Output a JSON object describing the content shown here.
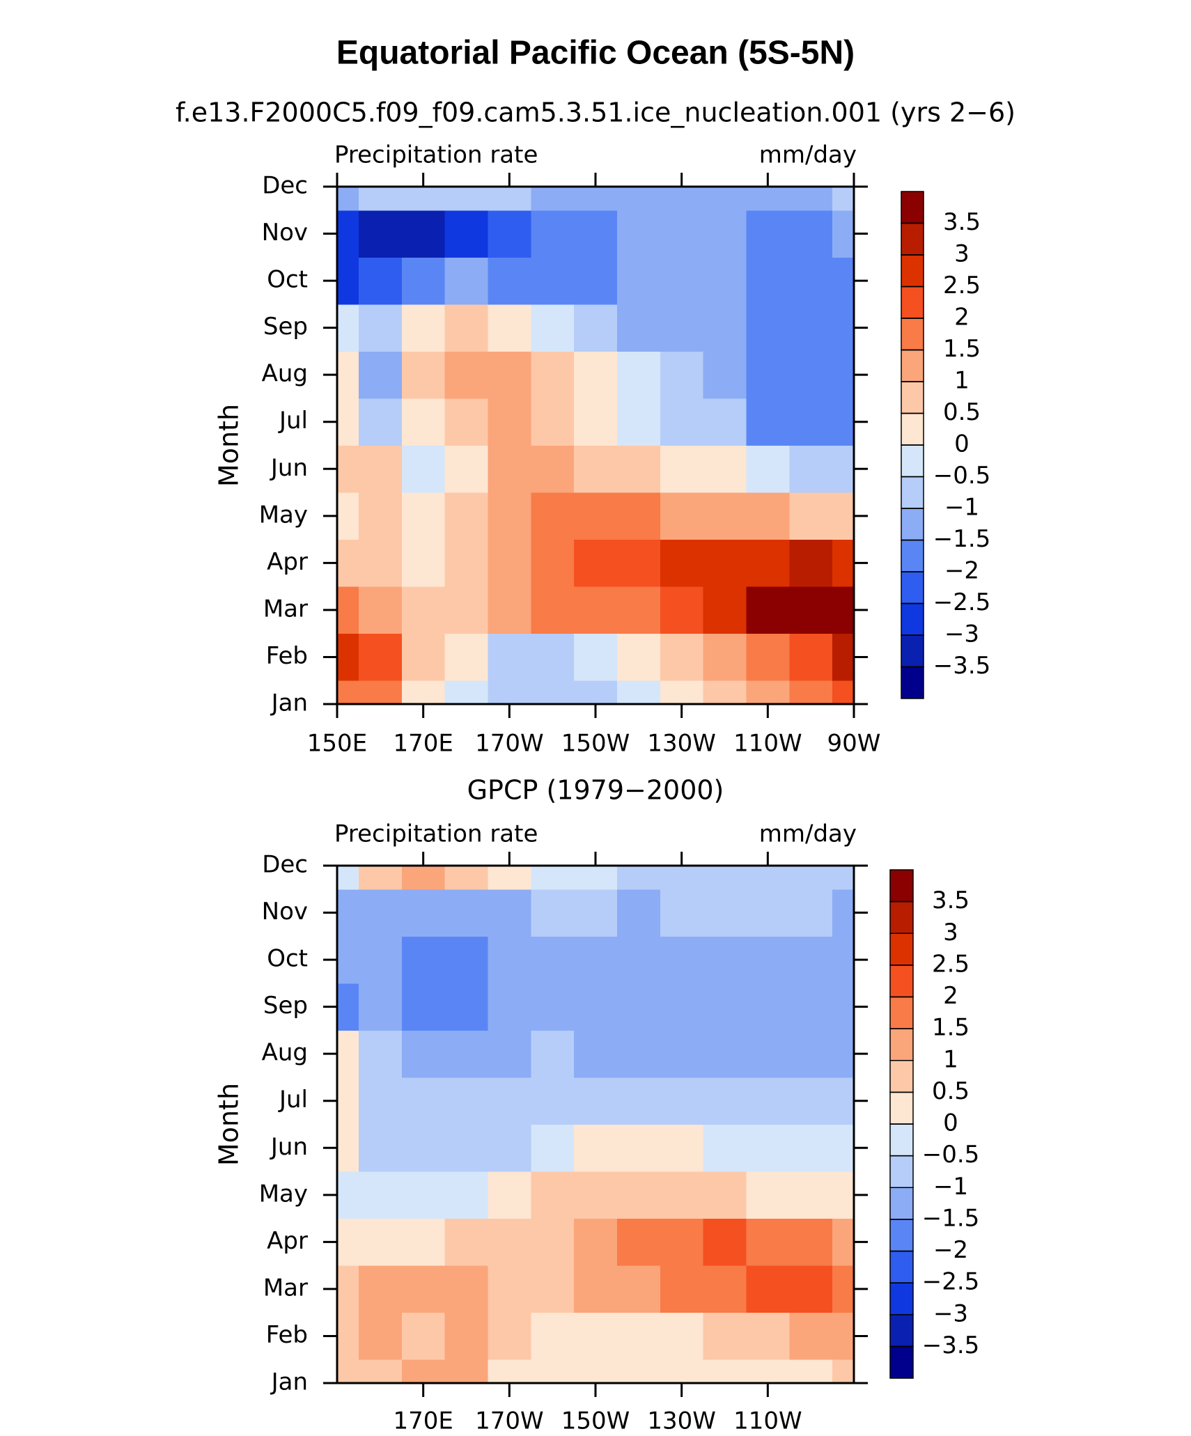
{
  "title": "Equatorial Pacific Ocean (5S-5N)",
  "chart_data": [
    {
      "type": "contour",
      "title": "f.e13.F2000C5.f09_f09.cam5.3.51.ice_nucleation.001 (yrs 2−6)",
      "left_string": "Precipitation rate",
      "right_string": "mm/day",
      "ylabel": "Month",
      "categories": [
        "Jan",
        "Feb",
        "Mar",
        "Apr",
        "May",
        "Jun",
        "Jul",
        "Aug",
        "Sep",
        "Oct",
        "Nov",
        "Dec"
      ],
      "x": [
        150,
        160,
        170,
        180,
        190,
        200,
        210,
        220,
        230,
        240,
        250,
        260,
        270
      ],
      "xlim": [
        150,
        270
      ],
      "xticks": [
        {
          "value": 150,
          "label": "150E"
        },
        {
          "value": 170,
          "label": "170E"
        },
        {
          "value": 190,
          "label": "170W"
        },
        {
          "value": 210,
          "label": "150W"
        },
        {
          "value": 230,
          "label": "130W"
        },
        {
          "value": 250,
          "label": "110W"
        },
        {
          "value": 270,
          "label": "90W"
        }
      ],
      "values": [
        [
          2,
          1.8,
          0.3,
          -0.3,
          -0.8,
          -0.8,
          -0.7,
          -0.3,
          0.2,
          0.8,
          1.2,
          1.6,
          2.5
        ],
        [
          2.8,
          2.5,
          1.0,
          0.2,
          -0.8,
          -0.8,
          -0.4,
          0.2,
          0.8,
          1.3,
          1.8,
          2.5,
          3.3
        ],
        [
          1.6,
          1.3,
          0.8,
          1.0,
          1.2,
          1.6,
          1.8,
          2.0,
          2.4,
          3.0,
          3.6,
          3.8,
          3.8
        ],
        [
          0.8,
          0.7,
          0.3,
          0.8,
          1.3,
          2.0,
          2.3,
          2.4,
          2.7,
          2.6,
          2.8,
          3.1,
          3.0
        ],
        [
          0.1,
          0.6,
          0.2,
          0.7,
          1.3,
          1.7,
          1.8,
          1.6,
          1.5,
          1.3,
          1.2,
          1.0,
          1.0
        ],
        [
          0.8,
          0.8,
          -0.3,
          0.4,
          1.2,
          1.3,
          1.0,
          0.7,
          0.3,
          0.1,
          -0.3,
          -0.6,
          -0.8
        ],
        [
          0.3,
          -0.8,
          0.2,
          0.6,
          1.1,
          0.8,
          0.3,
          -0.2,
          -0.5,
          -0.8,
          -1.6,
          -1.8,
          -1.8
        ],
        [
          0.1,
          -1.2,
          0.7,
          1.3,
          1.4,
          0.7,
          0.2,
          -0.4,
          -0.8,
          -1.2,
          -1.8,
          -1.8,
          -1.6
        ],
        [
          -0.4,
          -0.6,
          0.4,
          0.6,
          0.2,
          -0.3,
          -0.9,
          -1.3,
          -1.4,
          -1.4,
          -1.8,
          -1.8,
          -1.6
        ],
        [
          -2.5,
          -2.2,
          -1.5,
          -1.3,
          -1.5,
          -1.8,
          -1.6,
          -1.4,
          -1.3,
          -1.3,
          -1.8,
          -1.8,
          -1.5
        ],
        [
          -2.6,
          -3.3,
          -3.0,
          -2.6,
          -2.1,
          -1.7,
          -1.6,
          -1.4,
          -1.2,
          -1.3,
          -1.7,
          -1.8,
          -1.3
        ],
        [
          -1.0,
          -0.8,
          -0.9,
          -0.8,
          -0.7,
          -1.1,
          -1.2,
          -1.2,
          -1.2,
          -1.2,
          -1.2,
          -1.1,
          -0.7
        ]
      ],
      "levels": [
        {
          "value": -3.5,
          "label": "−3.5"
        },
        {
          "value": -3,
          "label": "−3"
        },
        {
          "value": -2.5,
          "label": "−2.5"
        },
        {
          "value": -2,
          "label": "−2"
        },
        {
          "value": -1.5,
          "label": "−1.5"
        },
        {
          "value": -1,
          "label": "−1"
        },
        {
          "value": -0.5,
          "label": "−0.5"
        },
        0,
        0.5,
        1,
        1.5,
        2,
        2.5,
        3,
        3.5
      ],
      "colors": [
        "#00008c",
        "#0a20b0",
        "#1038e0",
        "#2f5df0",
        "#5a86f5",
        "#8cacf5",
        "#b5cdf8",
        "#d5e6fa",
        "#fde6d2",
        "#fdc8a8",
        "#fba57b",
        "#f87b48",
        "#f55020",
        "#dc3200",
        "#b81d00",
        "#8b0000"
      ]
    },
    {
      "type": "contour",
      "title": "GPCP (1979−2000)",
      "left_string": "Precipitation rate",
      "right_string": "mm/day",
      "ylabel": "Month",
      "categories": [
        "Jan",
        "Feb",
        "Mar",
        "Apr",
        "May",
        "Jun",
        "Jul",
        "Aug",
        "Sep",
        "Oct",
        "Nov",
        "Dec"
      ],
      "x": [
        150,
        160,
        170,
        180,
        190,
        200,
        210,
        220,
        230,
        240,
        250,
        260,
        270
      ],
      "xlim": [
        150,
        270
      ],
      "xticks": [
        {
          "value": 170,
          "label": "170E"
        },
        {
          "value": 190,
          "label": "170W"
        },
        {
          "value": 210,
          "label": "150W"
        },
        {
          "value": 230,
          "label": "130W"
        },
        {
          "value": 250,
          "label": "110W"
        }
      ],
      "values": [
        [
          0.7,
          0.7,
          1.2,
          1.4,
          0.3,
          0.2,
          0.2,
          0.1,
          0.2,
          0.1,
          0.2,
          0.3,
          0.6
        ],
        [
          0.6,
          1.2,
          1.0,
          1.3,
          0.8,
          0.4,
          0.4,
          0.4,
          0.5,
          0.6,
          0.9,
          1.2,
          1.5
        ],
        [
          0.8,
          1.1,
          1.3,
          1.2,
          0.9,
          0.7,
          1.1,
          1.4,
          1.6,
          1.8,
          2.2,
          2.1,
          1.9
        ],
        [
          0.3,
          0.4,
          0.5,
          0.6,
          0.7,
          0.8,
          1.2,
          1.6,
          1.8,
          2.1,
          1.8,
          2.0,
          1.4
        ],
        [
          -0.2,
          -0.2,
          -0.4,
          -0.2,
          0.3,
          0.6,
          0.7,
          0.8,
          0.7,
          0.6,
          0.5,
          0.3,
          0.2
        ],
        [
          0.2,
          -0.7,
          -0.7,
          -0.7,
          -0.5,
          -0.1,
          0.2,
          0.2,
          0.1,
          -0.3,
          -0.4,
          -0.3,
          -0.2
        ],
        [
          0.2,
          -0.6,
          -0.8,
          -0.8,
          -0.8,
          -0.6,
          -0.5,
          -0.5,
          -0.6,
          -0.8,
          -0.8,
          -0.9,
          -0.8
        ],
        [
          0.1,
          -0.5,
          -1.2,
          -1.1,
          -1.0,
          -0.9,
          -1.0,
          -1.3,
          -1.3,
          -1.2,
          -1.0,
          -1.1,
          -1.2
        ],
        [
          -1.6,
          -1.3,
          -1.7,
          -1.7,
          -1.4,
          -1.2,
          -1.2,
          -1.3,
          -1.3,
          -1.2,
          -1.1,
          -1.1,
          -1.4
        ],
        [
          -1.3,
          -1.2,
          -1.6,
          -1.8,
          -1.3,
          -1.1,
          -1.1,
          -1.2,
          -1.3,
          -1.2,
          -1.0,
          -1.1,
          -1.4
        ],
        [
          -1.0,
          -1.2,
          -1.0,
          -1.1,
          -1.1,
          -0.9,
          -0.9,
          -1.0,
          -0.9,
          -0.8,
          -0.8,
          -0.9,
          -1.1
        ],
        [
          -0.4,
          0.6,
          1.3,
          1.0,
          0.4,
          -0.2,
          -0.4,
          -0.6,
          -0.6,
          -0.6,
          -0.6,
          -0.6,
          -0.6
        ]
      ],
      "levels": [
        {
          "value": -3.5,
          "label": "−3.5"
        },
        {
          "value": -3,
          "label": "−3"
        },
        {
          "value": -2.5,
          "label": "−2.5"
        },
        {
          "value": -2,
          "label": "−2"
        },
        {
          "value": -1.5,
          "label": "−1.5"
        },
        {
          "value": -1,
          "label": "−1"
        },
        {
          "value": -0.5,
          "label": "−0.5"
        },
        0,
        0.5,
        1,
        1.5,
        2,
        2.5,
        3,
        3.5
      ],
      "colors": [
        "#00008c",
        "#0a20b0",
        "#1038e0",
        "#2f5df0",
        "#5a86f5",
        "#8cacf5",
        "#b5cdf8",
        "#d5e6fa",
        "#fde6d2",
        "#fdc8a8",
        "#fba57b",
        "#f87b48",
        "#f55020",
        "#dc3200",
        "#b81d00",
        "#8b0000"
      ]
    }
  ]
}
